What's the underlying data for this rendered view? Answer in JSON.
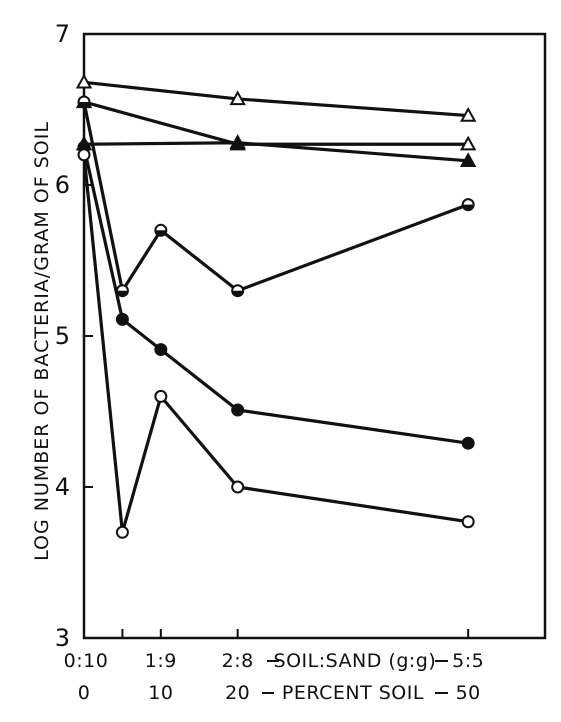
{
  "chart_data": {
    "type": "line",
    "ylabel": "LOG NUMBER OF BACTERIA/GRAM OF SOIL",
    "xlabel_ratio": "SOIL:SAND (g:g)",
    "xlabel_percent": "PERCENT SOIL",
    "x": [
      0,
      5,
      10,
      20,
      50
    ],
    "xlim": [
      0,
      60
    ],
    "ylim": [
      3,
      7
    ],
    "yticks": [
      3,
      4,
      5,
      6,
      7
    ],
    "xticks_ratio": [
      {
        "x": 0,
        "label": "0:10"
      },
      {
        "x": 10,
        "label": "1:9"
      },
      {
        "x": 20,
        "label": "2:8"
      },
      {
        "x": 50,
        "label": "5:5"
      }
    ],
    "xticks_percent": [
      {
        "x": 0,
        "label": "0"
      },
      {
        "x": 10,
        "label": "10"
      },
      {
        "x": 20,
        "label": "20"
      },
      {
        "x": 50,
        "label": "50"
      }
    ],
    "grid": false,
    "legend": "none",
    "series": [
      {
        "marker": "open-triangle",
        "points": [
          [
            0,
            6.68
          ],
          [
            20,
            6.57
          ],
          [
            50,
            6.46
          ]
        ]
      },
      {
        "marker": "open-triangle",
        "points": [
          [
            0,
            6.55
          ],
          [
            20,
            6.27
          ],
          [
            50,
            6.27
          ]
        ]
      },
      {
        "marker": "filled-triangle",
        "points": [
          [
            0,
            6.27
          ],
          [
            20,
            6.28
          ],
          [
            50,
            6.16
          ]
        ]
      },
      {
        "marker": "half-circle",
        "points": [
          [
            0,
            6.55
          ],
          [
            5,
            5.3
          ],
          [
            10,
            5.7
          ],
          [
            20,
            5.3
          ],
          [
            50,
            5.87
          ]
        ]
      },
      {
        "marker": "filled-circle",
        "points": [
          [
            0,
            6.25
          ],
          [
            5,
            5.11
          ],
          [
            10,
            4.91
          ],
          [
            20,
            4.51
          ],
          [
            50,
            4.29
          ]
        ]
      },
      {
        "marker": "open-circle",
        "points": [
          [
            0,
            6.2
          ],
          [
            5,
            3.7
          ],
          [
            10,
            4.6
          ],
          [
            20,
            4.0
          ],
          [
            50,
            3.77
          ]
        ]
      }
    ]
  }
}
